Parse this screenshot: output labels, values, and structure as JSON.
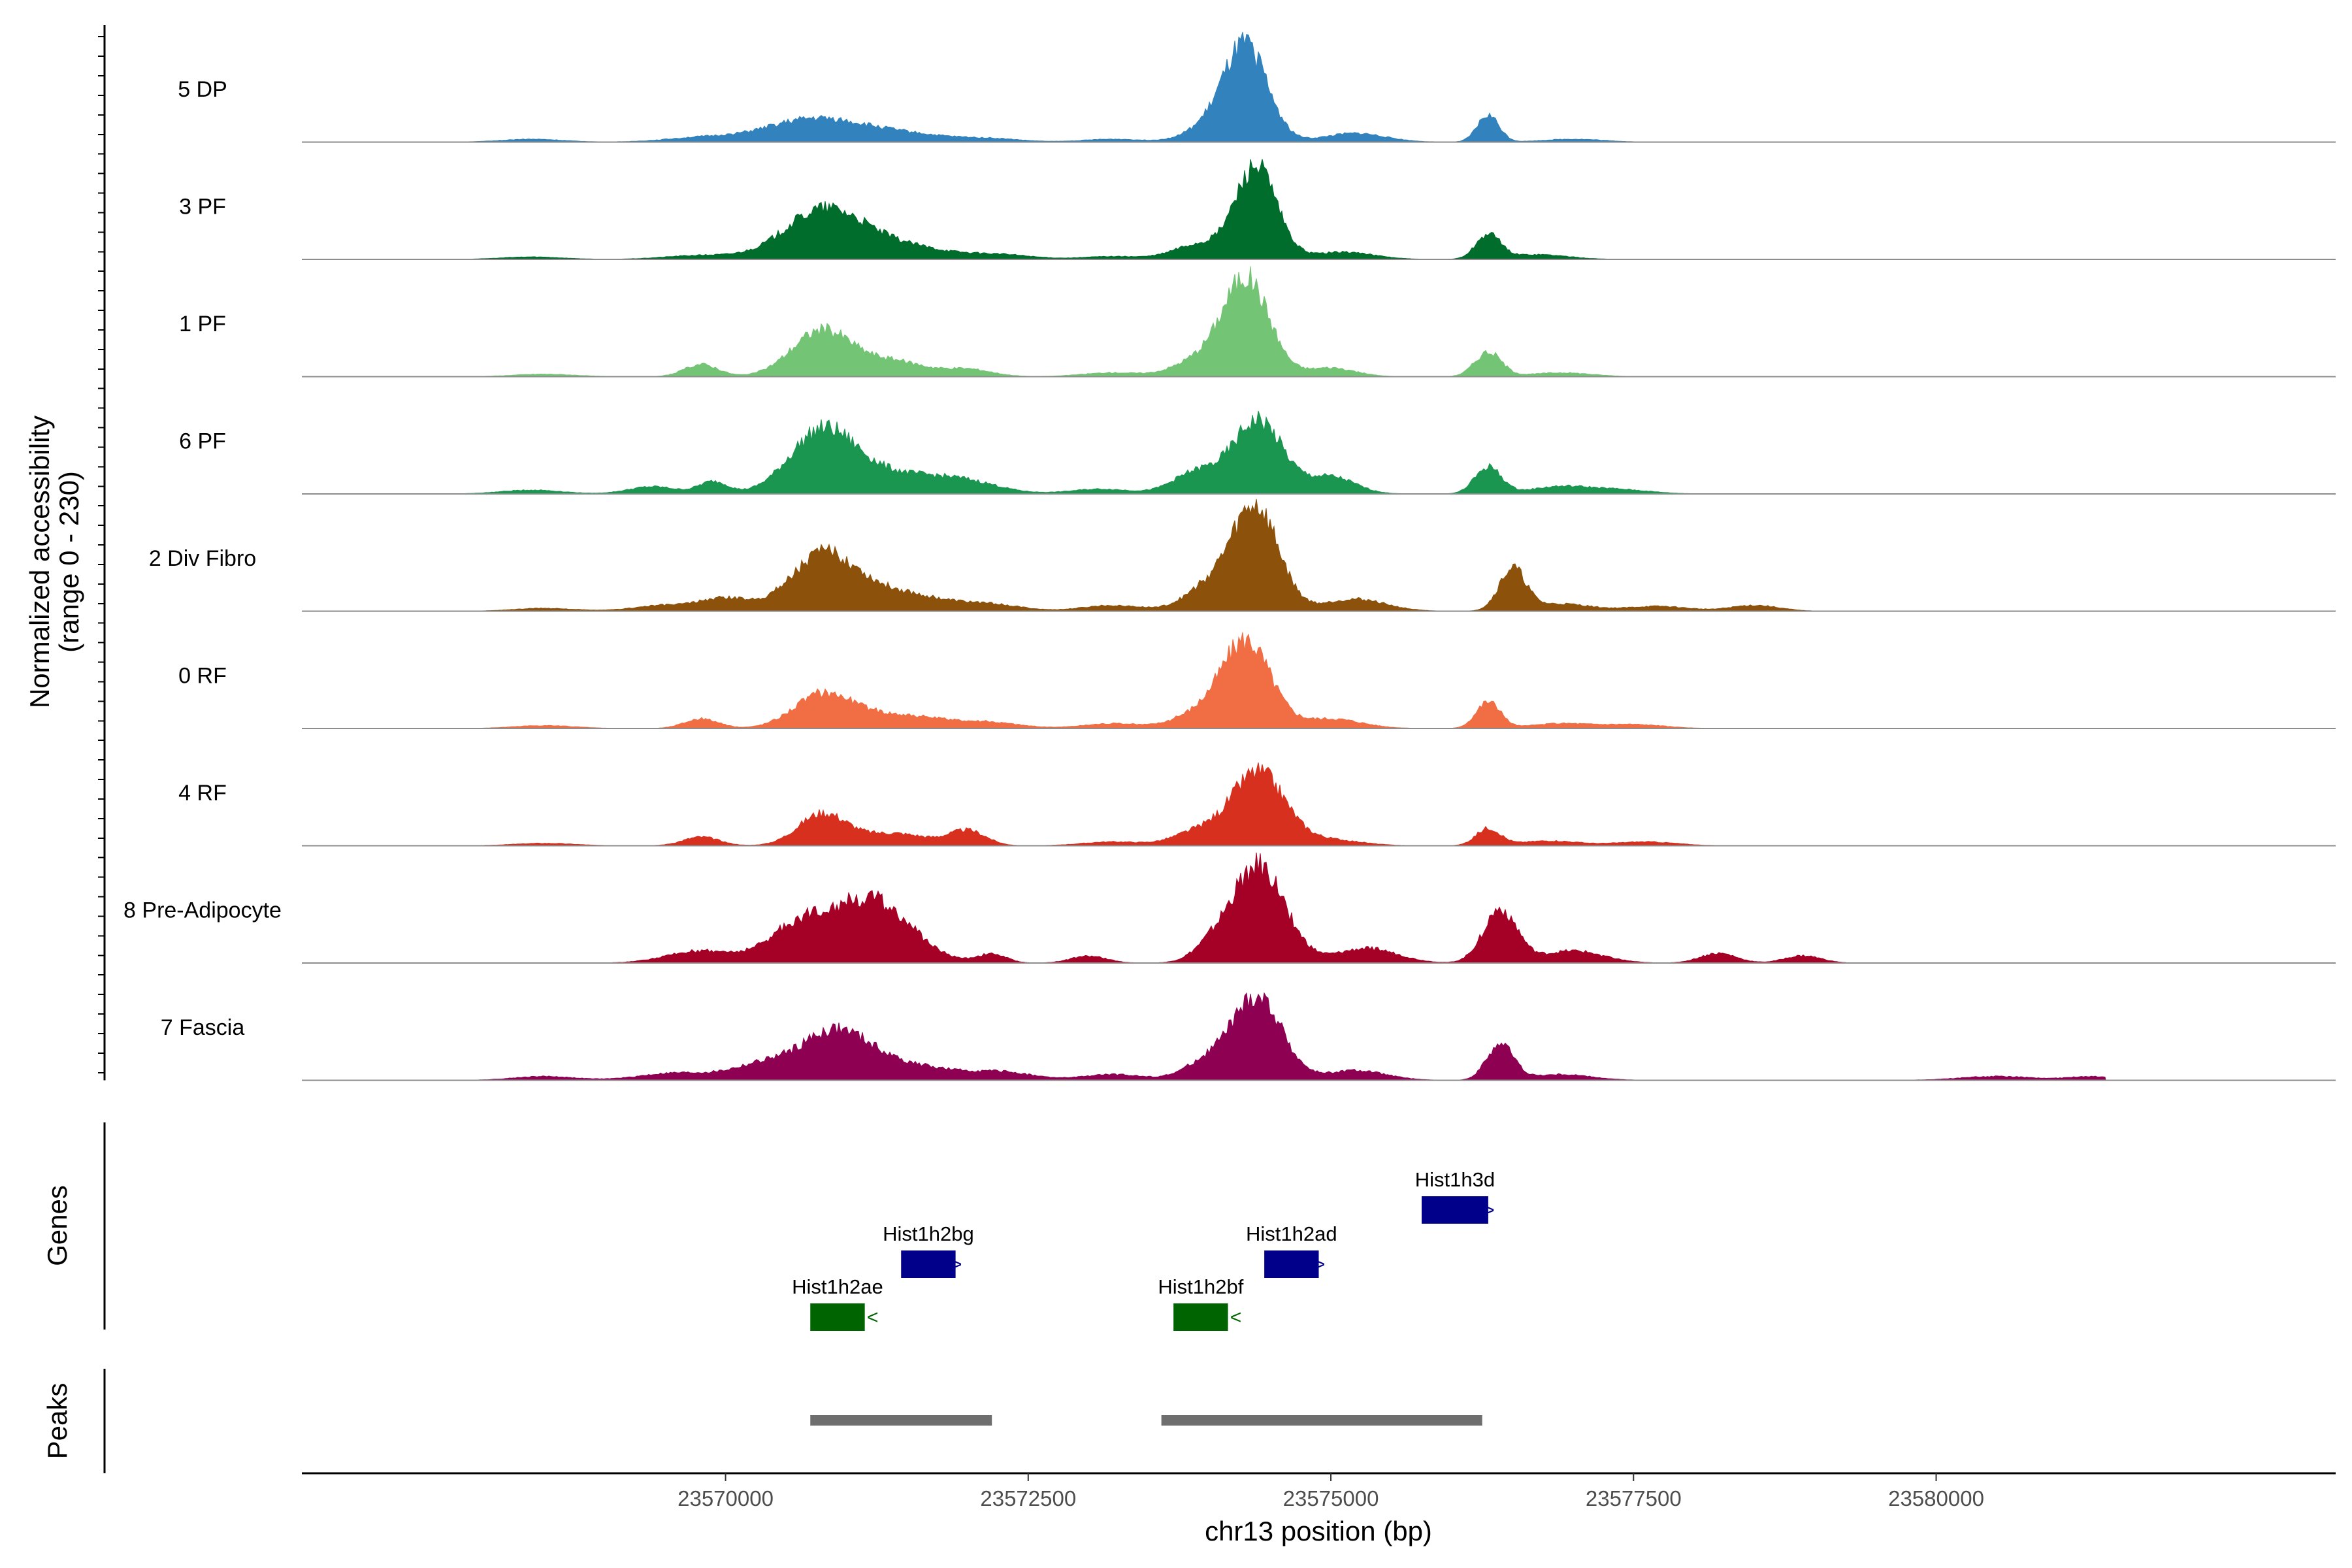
{
  "chart_data": {
    "type": "area",
    "title": "",
    "xlabel": "chr13 position (bp)",
    "ylabel": "Normalized accessibility",
    "ylabel_range": "(range 0 - 230)",
    "ylim": [
      0,
      230
    ],
    "xlim": [
      23566500,
      23583300
    ],
    "x_ticks": [
      {
        "value": 23570000,
        "label": "23570000"
      },
      {
        "value": 23572500,
        "label": "23572500"
      },
      {
        "value": 23575000,
        "label": "23575000"
      },
      {
        "value": 23577500,
        "label": "23577500"
      },
      {
        "value": 23580000,
        "label": "23580000"
      }
    ],
    "signal_extent": [
      23566500,
      23581400
    ],
    "tracks": [
      {
        "name": "5 DP",
        "color": "#3182bd",
        "peaks": [
          [
            23568400,
            6,
            250
          ],
          [
            23569800,
            9,
            300
          ],
          [
            23570700,
            45,
            380
          ],
          [
            23571400,
            18,
            400
          ],
          [
            23572200,
            6,
            250
          ],
          [
            23573200,
            6,
            250
          ],
          [
            23574000,
            28,
            200
          ],
          [
            23574300,
            190,
            180
          ],
          [
            23575200,
            18,
            250
          ],
          [
            23576300,
            55,
            90
          ],
          [
            23577000,
            6,
            250
          ]
        ]
      },
      {
        "name": "3 PF",
        "color": "#006d2c",
        "peaks": [
          [
            23568400,
            5,
            250
          ],
          [
            23569800,
            8,
            300
          ],
          [
            23570800,
            95,
            320
          ],
          [
            23571400,
            28,
            420
          ],
          [
            23572300,
            8,
            250
          ],
          [
            23573200,
            6,
            250
          ],
          [
            23573900,
            30,
            200
          ],
          [
            23574380,
            190,
            170
          ],
          [
            23575100,
            15,
            250
          ],
          [
            23576300,
            50,
            100
          ],
          [
            23576700,
            10,
            250
          ]
        ]
      },
      {
        "name": "1 PF",
        "color": "#74c476",
        "peaks": [
          [
            23568500,
            5,
            250
          ],
          [
            23569800,
            25,
            140
          ],
          [
            23570800,
            95,
            250
          ],
          [
            23571400,
            30,
            250
          ],
          [
            23572000,
            15,
            200
          ],
          [
            23573200,
            8,
            250
          ],
          [
            23573900,
            32,
            200
          ],
          [
            23574300,
            200,
            190
          ],
          [
            23575000,
            18,
            200
          ],
          [
            23576300,
            50,
            110
          ],
          [
            23576900,
            8,
            250
          ]
        ]
      },
      {
        "name": "6 PF",
        "color": "#1b9650",
        "peaks": [
          [
            23568400,
            8,
            250
          ],
          [
            23569400,
            15,
            200
          ],
          [
            23569900,
            25,
            120
          ],
          [
            23570800,
            125,
            270
          ],
          [
            23571400,
            38,
            380
          ],
          [
            23572000,
            20,
            280
          ],
          [
            23573100,
            10,
            250
          ],
          [
            23573900,
            45,
            200
          ],
          [
            23574400,
            150,
            200
          ],
          [
            23575000,
            35,
            200
          ],
          [
            23576300,
            55,
            110
          ],
          [
            23576900,
            15,
            250
          ],
          [
            23577400,
            8,
            250
          ]
        ]
      },
      {
        "name": "2 Div Fibro",
        "color": "#8c510a",
        "peaks": [
          [
            23568500,
            6,
            250
          ],
          [
            23569500,
            12,
            250
          ],
          [
            23570000,
            25,
            200
          ],
          [
            23570800,
            110,
            270
          ],
          [
            23571400,
            38,
            380
          ],
          [
            23572200,
            12,
            250
          ],
          [
            23573200,
            12,
            250
          ],
          [
            23574000,
            50,
            200
          ],
          [
            23574380,
            210,
            190
          ],
          [
            23575200,
            25,
            250
          ],
          [
            23576500,
            85,
            110
          ],
          [
            23576900,
            15,
            250
          ],
          [
            23577700,
            10,
            250
          ],
          [
            23578500,
            12,
            200
          ]
        ]
      },
      {
        "name": "0 RF",
        "color": "#f16d43",
        "peaks": [
          [
            23568500,
            6,
            250
          ],
          [
            23569800,
            20,
            140
          ],
          [
            23570800,
            65,
            240
          ],
          [
            23571400,
            28,
            400
          ],
          [
            23572200,
            10,
            250
          ],
          [
            23573200,
            10,
            250
          ],
          [
            23573900,
            28,
            200
          ],
          [
            23574300,
            180,
            200
          ],
          [
            23575000,
            20,
            250
          ],
          [
            23576300,
            55,
            100
          ],
          [
            23576900,
            10,
            250
          ],
          [
            23577500,
            8,
            250
          ]
        ]
      },
      {
        "name": "4 RF",
        "color": "#d7301f",
        "peaks": [
          [
            23568500,
            5,
            250
          ],
          [
            23569800,
            18,
            150
          ],
          [
            23570800,
            65,
            200
          ],
          [
            23571400,
            25,
            280
          ],
          [
            23572000,
            30,
            150
          ],
          [
            23573200,
            8,
            250
          ],
          [
            23573900,
            28,
            200
          ],
          [
            23574400,
            150,
            220
          ],
          [
            23575000,
            12,
            250
          ],
          [
            23576300,
            35,
            100
          ],
          [
            23576800,
            10,
            250
          ],
          [
            23577600,
            8,
            250
          ]
        ]
      },
      {
        "name": "8 Pre-Adipocyte",
        "color": "#a50026",
        "peaks": [
          [
            23569800,
            25,
            280
          ],
          [
            23570600,
            70,
            250
          ],
          [
            23571200,
            130,
            320
          ],
          [
            23572200,
            18,
            120
          ],
          [
            23573000,
            14,
            150
          ],
          [
            23574000,
            25,
            150
          ],
          [
            23574400,
            200,
            220
          ],
          [
            23575300,
            30,
            250
          ],
          [
            23576400,
            110,
            140
          ],
          [
            23577000,
            25,
            250
          ],
          [
            23578200,
            20,
            150
          ],
          [
            23578900,
            15,
            150
          ]
        ]
      },
      {
        "name": "7 Fascia",
        "color": "#8e0152",
        "peaks": [
          [
            23568500,
            8,
            250
          ],
          [
            23569600,
            15,
            300
          ],
          [
            23570300,
            30,
            250
          ],
          [
            23570900,
            95,
            280
          ],
          [
            23571500,
            30,
            380
          ],
          [
            23572300,
            15,
            250
          ],
          [
            23573200,
            12,
            250
          ],
          [
            23574000,
            40,
            200
          ],
          [
            23574400,
            165,
            200
          ],
          [
            23575200,
            20,
            250
          ],
          [
            23576400,
            75,
            110
          ],
          [
            23576900,
            12,
            250
          ],
          [
            23580500,
            8,
            300
          ],
          [
            23581300,
            8,
            200
          ]
        ]
      }
    ],
    "gene_track_label": "Genes",
    "genes": [
      {
        "name": "Hist1h2ae",
        "start": 23570700,
        "end": 23571150,
        "strand": "-",
        "color": "#006400",
        "row": 3
      },
      {
        "name": "Hist1h2bg",
        "start": 23571450,
        "end": 23571900,
        "strand": "+",
        "color": "#00008b",
        "row": 2
      },
      {
        "name": "Hist1h2bf",
        "start": 23573700,
        "end": 23574150,
        "strand": "-",
        "color": "#006400",
        "row": 3
      },
      {
        "name": "Hist1h2ad",
        "start": 23574450,
        "end": 23574900,
        "strand": "+",
        "color": "#00008b",
        "row": 2
      },
      {
        "name": "Hist1h3d",
        "start": 23575750,
        "end": 23576300,
        "strand": "+",
        "color": "#00008b",
        "row": 1
      }
    ],
    "peak_track_label": "Peaks",
    "peak_regions": [
      {
        "start": 23570700,
        "end": 23572200
      },
      {
        "start": 23573600,
        "end": 23576250
      }
    ],
    "peak_color": "#6e6e6e"
  }
}
